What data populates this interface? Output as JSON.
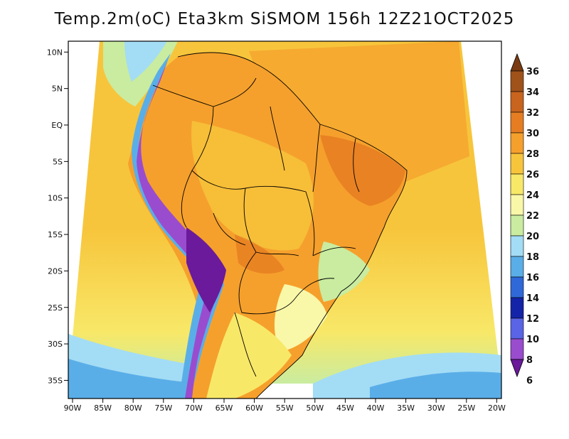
{
  "title": "Temp.2m(oC) Eta3km SiSMOM 156h 12Z21OCT2025",
  "lat_labels": [
    "10N",
    "5N",
    "EQ",
    "5S",
    "10S",
    "15S",
    "20S",
    "25S",
    "30S",
    "35S"
  ],
  "lat_values": [
    10,
    5,
    0,
    -5,
    -10,
    -15,
    -20,
    -25,
    -30,
    -35
  ],
  "lon_labels": [
    "90W",
    "85W",
    "80W",
    "75W",
    "70W",
    "65W",
    "60W",
    "55W",
    "50W",
    "45W",
    "40W",
    "35W",
    "30W",
    "25W",
    "20W"
  ],
  "lon_values": [
    -90,
    -85,
    -80,
    -75,
    -70,
    -65,
    -60,
    -55,
    -50,
    -45,
    -40,
    -35,
    -30,
    -25,
    -20
  ],
  "colorbar": {
    "labels": [
      "36",
      "34",
      "32",
      "30",
      "28",
      "26",
      "24",
      "22",
      "20",
      "18",
      "16",
      "14",
      "12",
      "10",
      "8",
      "6"
    ],
    "values": [
      36,
      34,
      32,
      30,
      28,
      26,
      24,
      22,
      20,
      18,
      16,
      14,
      12,
      10,
      8,
      6
    ],
    "colors": [
      "#7a3b12",
      "#a0521b",
      "#c8641e",
      "#e67d22",
      "#f5a02c",
      "#f7c53c",
      "#f8e868",
      "#f9f7a8",
      "#c9eca0",
      "#a3dcf5",
      "#5aaee8",
      "#2f68d8",
      "#1424a8",
      "#5a64e6",
      "#9a4ccf",
      "#6a1a9a"
    ]
  },
  "colors": {
    "ocean_south": "#f7c53c",
    "ocean_north": "#f5a02c",
    "boundary": "#000000"
  }
}
